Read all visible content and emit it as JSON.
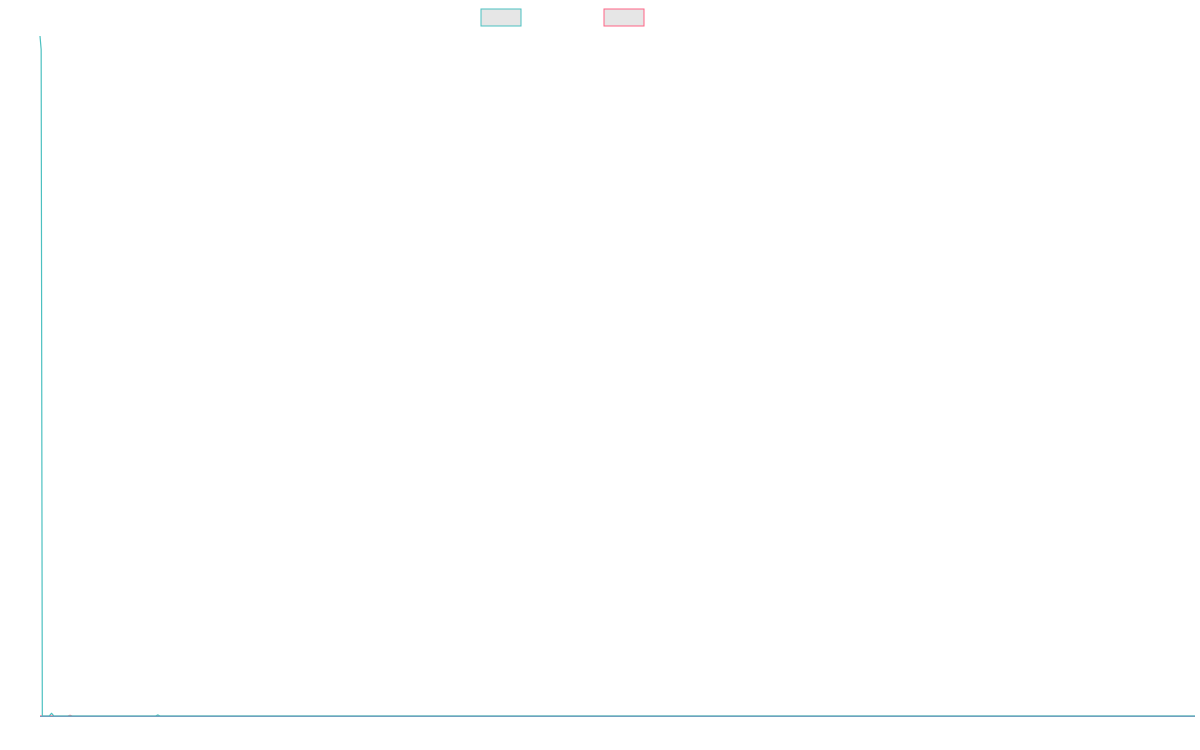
{
  "chart_data": {
    "type": "line",
    "title": "",
    "xlabel": "",
    "ylabel": "",
    "grid": false,
    "legend_position": "top-center",
    "xlim": [
      0,
      1000
    ],
    "ylim": [
      0,
      1000
    ],
    "series": [
      {
        "color": "#4bc0c0",
        "swatch_fill": "#e6e6e6",
        "x": [
          0,
          1,
          2,
          4,
          8,
          10,
          12,
          14,
          20,
          25,
          30,
          40,
          60,
          90,
          100,
          102,
          104,
          130,
          200,
          400,
          700,
          1000
        ],
        "y": [
          1000,
          980,
          0,
          0,
          0,
          4,
          0,
          0,
          0,
          0,
          0,
          0,
          0,
          0,
          0,
          1.5,
          0,
          0,
          0,
          0,
          0,
          0
        ]
      },
      {
        "color": "#ff6384",
        "swatch_fill": "#e6e6e6",
        "x": [
          0,
          10,
          20,
          24,
          26,
          28,
          40,
          100,
          1000
        ],
        "y": [
          0,
          0,
          0,
          0,
          1,
          0,
          0,
          0,
          0
        ]
      }
    ],
    "axis_color": "#6fa0c0"
  }
}
